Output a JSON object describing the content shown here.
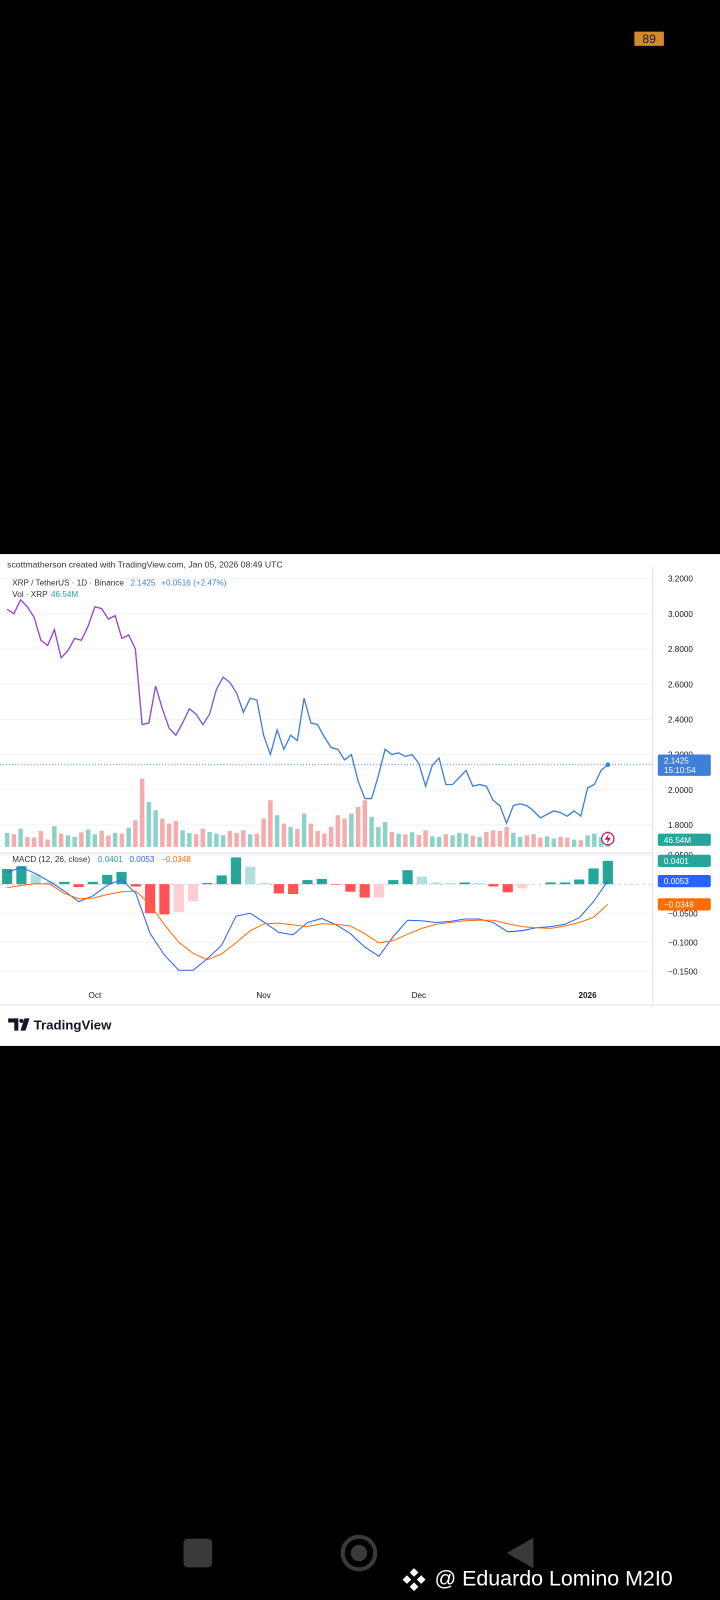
{
  "status": {
    "badge": "89"
  },
  "header": {
    "credit": "scottmatherson created with TradingView.com, Jan 05, 2026 08:49 UTC"
  },
  "chart_data": [
    {
      "type": "line",
      "title": "XRP / TetherUS · 1D · Binance",
      "change": "+0.0516 (+2.47%)",
      "countdown": "15:10:54",
      "colors": [
        "#9b3fd0",
        "#3f7fd8"
      ],
      "categories": [
        null,
        null,
        null,
        null,
        null,
        null,
        null,
        null,
        null,
        null,
        null,
        null,
        null,
        "Oct",
        null,
        null,
        null,
        null,
        null,
        null,
        null,
        null,
        null,
        null,
        null,
        null,
        null,
        null,
        null,
        null,
        null,
        null,
        null,
        null,
        null,
        null,
        null,
        null,
        "Nov",
        null,
        null,
        null,
        null,
        null,
        null,
        null,
        null,
        null,
        null,
        null,
        null,
        null,
        null,
        null,
        null,
        null,
        null,
        null,
        null,
        null,
        null,
        "Dec",
        null,
        null,
        null,
        null,
        null,
        null,
        null,
        null,
        null,
        null,
        null,
        null,
        null,
        null,
        null,
        null,
        null,
        null,
        null,
        null,
        null,
        null,
        null,
        null,
        "2026",
        null,
        null,
        null
      ],
      "values": [
        3.026,
        3.0,
        3.08,
        3.04,
        2.98,
        2.85,
        2.82,
        2.91,
        2.75,
        2.79,
        2.86,
        2.85,
        2.93,
        3.04,
        3.03,
        2.97,
        2.99,
        2.86,
        2.88,
        2.8,
        2.37,
        2.38,
        2.59,
        2.46,
        2.35,
        2.31,
        2.38,
        2.46,
        2.43,
        2.37,
        2.43,
        2.57,
        2.64,
        2.61,
        2.55,
        2.44,
        2.52,
        2.51,
        2.31,
        2.2,
        2.34,
        2.23,
        2.31,
        2.28,
        2.52,
        2.38,
        2.37,
        2.3,
        2.24,
        2.23,
        2.17,
        2.2,
        2.05,
        1.95,
        1.95,
        2.08,
        2.23,
        2.2,
        2.21,
        2.19,
        2.2,
        2.15,
        2.02,
        2.14,
        2.18,
        2.03,
        2.03,
        2.07,
        2.11,
        2.02,
        2.03,
        2.02,
        1.94,
        1.91,
        1.81,
        1.91,
        1.92,
        1.91,
        1.88,
        1.84,
        1.86,
        1.88,
        1.87,
        1.85,
        1.88,
        1.85,
        2.01,
        2.03,
        2.11,
        2.1425
      ],
      "ylim": [
        1.675,
        3.27
      ],
      "yticks": [
        {
          "value": 3.2,
          "label": "3.2000"
        },
        {
          "value": 3.0,
          "label": "3.0000"
        },
        {
          "value": 2.8,
          "label": "2.8000"
        },
        {
          "value": 2.6,
          "label": "2.6000"
        },
        {
          "value": 2.4,
          "label": "2.4000"
        },
        {
          "value": 2.2,
          "label": "2.2000"
        },
        {
          "value": 2.0,
          "label": "2.0000"
        },
        {
          "value": 1.8,
          "label": "1.8000"
        }
      ],
      "grid": true
    },
    {
      "type": "bar",
      "title": "Vol · XRP",
      "colors": {
        "up": "#80cdc3",
        "down": "#f4a3a3",
        "label": "#26a69a"
      },
      "values": [
        42,
        38,
        55,
        30,
        28,
        48,
        22,
        62,
        40,
        35,
        30,
        44,
        52,
        38,
        48,
        34,
        42,
        40,
        58,
        80,
        205,
        135,
        110,
        85,
        70,
        78,
        50,
        42,
        38,
        55,
        45,
        40,
        35,
        48,
        42,
        50,
        38,
        40,
        85,
        140,
        95,
        70,
        60,
        55,
        100,
        70,
        48,
        40,
        60,
        95,
        85,
        100,
        120,
        140,
        90,
        60,
        75,
        45,
        40,
        38,
        44,
        36,
        50,
        32,
        30,
        38,
        35,
        42,
        40,
        34,
        30,
        45,
        50,
        48,
        60,
        42,
        30,
        35,
        38,
        28,
        32,
        25,
        30,
        28,
        22,
        20,
        35,
        40,
        30,
        46.54
      ],
      "value_labels": [
        null,
        null,
        null,
        null,
        null,
        null,
        null,
        null,
        null,
        null,
        null,
        null,
        null,
        null,
        null,
        null,
        null,
        null,
        null,
        null,
        null,
        null,
        null,
        null,
        null,
        null,
        null,
        null,
        null,
        null,
        null,
        null,
        null,
        null,
        null,
        null,
        null,
        null,
        null,
        null,
        null,
        null,
        null,
        null,
        null,
        null,
        null,
        null,
        null,
        null,
        null,
        null,
        null,
        null,
        null,
        null,
        null,
        null,
        null,
        null,
        null,
        null,
        null,
        null,
        null,
        null,
        null,
        null,
        null,
        null,
        null,
        null,
        null,
        null,
        null,
        null,
        null,
        null,
        null,
        null,
        null,
        null,
        null,
        null,
        null,
        null,
        null,
        null,
        null,
        "46.54M"
      ]
    },
    {
      "type": "macd",
      "title": "MACD (12, 26, close)",
      "histogram": {
        "colors": {
          "up_strong": "#26a69a",
          "up_weak": "#b2dfdb",
          "down_weak": "#ffcdd2",
          "down_strong": "#ff5252"
        },
        "values": [
          0.026,
          0.031,
          0.017,
          0.004,
          0.004,
          -0.005,
          0.004,
          0.016,
          0.021,
          -0.004,
          -0.05,
          -0.052,
          -0.048,
          -0.029,
          0.002,
          0.015,
          0.046,
          0.03,
          0.002,
          -0.016,
          -0.017,
          0.007,
          0.009,
          -0.001,
          -0.013,
          -0.023,
          -0.023,
          0.007,
          0.024,
          0.013,
          0.003,
          0.002,
          0.003,
          0.002,
          -0.004,
          -0.014,
          -0.007,
          0.0,
          0.003,
          0.003,
          0.008,
          0.027,
          0.0401
        ]
      },
      "macd": {
        "color": "#2962ff",
        "values": [
          0.02,
          0.029,
          0.018,
          0.004,
          -0.012,
          -0.03,
          -0.02,
          -0.002,
          0.008,
          -0.016,
          -0.085,
          -0.122,
          -0.148,
          -0.148,
          -0.128,
          -0.105,
          -0.055,
          -0.05,
          -0.066,
          -0.083,
          -0.087,
          -0.066,
          -0.059,
          -0.07,
          -0.085,
          -0.108,
          -0.124,
          -0.09,
          -0.062,
          -0.063,
          -0.066,
          -0.064,
          -0.06,
          -0.06,
          -0.066,
          -0.082,
          -0.08,
          -0.075,
          -0.073,
          -0.069,
          -0.058,
          -0.03,
          0.0053
        ]
      },
      "signal": {
        "color": "#ff6d00",
        "values": [
          -0.006,
          -0.002,
          0.001,
          0.0,
          -0.016,
          -0.025,
          -0.024,
          -0.018,
          -0.013,
          -0.012,
          -0.035,
          -0.07,
          -0.1,
          -0.119,
          -0.13,
          -0.12,
          -0.101,
          -0.08,
          -0.068,
          -0.067,
          -0.07,
          -0.073,
          -0.068,
          -0.069,
          -0.072,
          -0.085,
          -0.101,
          -0.097,
          -0.086,
          -0.076,
          -0.069,
          -0.066,
          -0.063,
          -0.062,
          -0.062,
          -0.068,
          -0.073,
          -0.075,
          -0.076,
          -0.072,
          -0.066,
          -0.057,
          -0.0348
        ],
        "value_labels": [
          null,
          null,
          null,
          null,
          null,
          null,
          null,
          null,
          null,
          null,
          null,
          null,
          null,
          null,
          null,
          null,
          null,
          null,
          null,
          null,
          null,
          null,
          null,
          null,
          null,
          null,
          null,
          null,
          null,
          null,
          null,
          null,
          null,
          null,
          null,
          null,
          null,
          null,
          null,
          null,
          null,
          null,
          "−0.0348"
        ]
      },
      "ylim": [
        -0.208,
        0.0535
      ],
      "yticks": [
        {
          "value": 0.05,
          "label": "0.0500"
        },
        {
          "value": -0.05,
          "label": "−0.0500"
        },
        {
          "value": -0.1,
          "label": "−0.1000"
        },
        {
          "value": -0.15,
          "label": "−0.1500"
        }
      ],
      "grid": true
    }
  ],
  "footer": {
    "brand": "TradingView",
    "watermark": "@ Eduardo Lomino M2I0"
  }
}
